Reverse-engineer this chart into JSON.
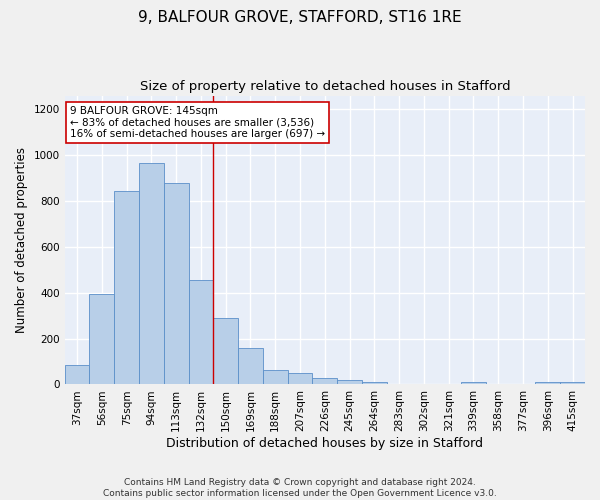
{
  "title_line1": "9, BALFOUR GROVE, STAFFORD, ST16 1RE",
  "title_line2": "Size of property relative to detached houses in Stafford",
  "xlabel": "Distribution of detached houses by size in Stafford",
  "ylabel": "Number of detached properties",
  "categories": [
    "37sqm",
    "56sqm",
    "75sqm",
    "94sqm",
    "113sqm",
    "132sqm",
    "150sqm",
    "169sqm",
    "188sqm",
    "207sqm",
    "226sqm",
    "245sqm",
    "264sqm",
    "283sqm",
    "302sqm",
    "321sqm",
    "339sqm",
    "358sqm",
    "377sqm",
    "396sqm",
    "415sqm"
  ],
  "values": [
    85,
    395,
    845,
    965,
    880,
    455,
    290,
    160,
    65,
    48,
    28,
    20,
    10,
    0,
    0,
    0,
    10,
    0,
    0,
    10,
    10
  ],
  "bar_color": "#b8cfe8",
  "bar_edge_color": "#5b8fc9",
  "vline_x": 5.5,
  "vline_color": "#cc0000",
  "annotation_text": "9 BALFOUR GROVE: 145sqm\n← 83% of detached houses are smaller (3,536)\n16% of semi-detached houses are larger (697) →",
  "annotation_box_color": "#ffffff",
  "annotation_border_color": "#cc0000",
  "ylim": [
    0,
    1260
  ],
  "yticks": [
    0,
    200,
    400,
    600,
    800,
    1000,
    1200
  ],
  "footer_line1": "Contains HM Land Registry data © Crown copyright and database right 2024.",
  "footer_line2": "Contains public sector information licensed under the Open Government Licence v3.0.",
  "bg_color": "#e8eef8",
  "grid_color": "#ffffff",
  "title1_fontsize": 11,
  "title2_fontsize": 9.5,
  "xlabel_fontsize": 9,
  "ylabel_fontsize": 8.5,
  "tick_fontsize": 7.5,
  "annotation_fontsize": 7.5,
  "footer_fontsize": 6.5
}
